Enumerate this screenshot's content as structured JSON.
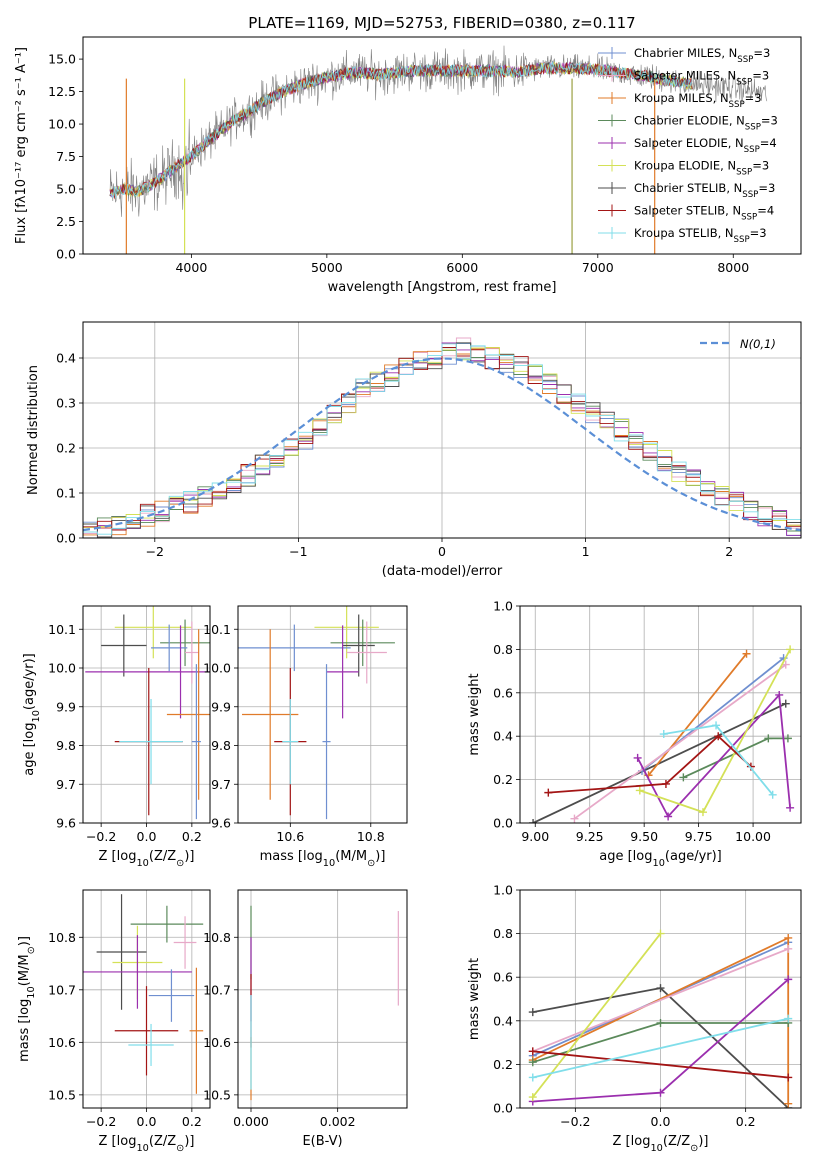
{
  "chart_data": [
    {
      "type": "line",
      "title": "PLATE=1169, MJD=52753, FIBERID=0380, z=0.117",
      "xlabel": "wavelength [Angstrom, rest frame]",
      "ylabel": "Flux [fλ10⁻¹⁷ erg cm⁻² s⁻¹ A⁻¹]",
      "xlim": [
        3200,
        8500
      ],
      "ylim": [
        0,
        16.7
      ],
      "xticks": [
        4000,
        5000,
        6000,
        7000,
        8000
      ],
      "yticks": [
        0.0,
        2.5,
        5.0,
        7.5,
        10.0,
        12.5,
        15.0
      ],
      "legend_position": "top-right",
      "continuum": {
        "x": [
          3400,
          3500,
          3600,
          3700,
          3800,
          3900,
          4000,
          4100,
          4200,
          4300,
          4400,
          4500,
          4600,
          4700,
          4800,
          5000,
          5200,
          5400,
          5600,
          5800,
          6000,
          6200,
          6400,
          6600,
          6800,
          7000,
          7200,
          7400,
          7600,
          7800,
          8000,
          8250
        ],
        "y": [
          4.6,
          5.0,
          4.8,
          5.3,
          6.0,
          6.8,
          7.5,
          8.5,
          9.3,
          10.2,
          10.8,
          11.5,
          12.1,
          12.6,
          13.0,
          13.6,
          14.0,
          13.8,
          14.1,
          14.1,
          14.1,
          14.1,
          14.0,
          14.3,
          14.3,
          14.2,
          13.9,
          13.6,
          13.2,
          13.0,
          12.8,
          12.3
        ]
      },
      "series": [
        {
          "name": "Chabrier MILES, N$_{SSP}$=3",
          "color": "#6f8fd0"
        },
        {
          "name": "Salpeter MILES, N$_{SSP}$=3",
          "color": "#e7a9c8"
        },
        {
          "name": "Kroupa MILES, N$_{SSP}$=3",
          "color": "#e07b2a"
        },
        {
          "name": "Chabrier ELODIE, N$_{SSP}$=3",
          "color": "#5b8a5b"
        },
        {
          "name": "Salpeter ELODIE, N$_{SSP}$=4",
          "color": "#9b2fae"
        },
        {
          "name": "Kroupa ELODIE, N$_{SSP}$=3",
          "color": "#d4e157"
        },
        {
          "name": "Chabrier STELIB, N$_{SSP}$=3",
          "color": "#4d4d4d"
        },
        {
          "name": "Salpeter STELIB, N$_{SSP}$=4",
          "color": "#a31515"
        },
        {
          "name": "Kroupa STELIB, N$_{SSP}$=3",
          "color": "#80deea"
        }
      ]
    },
    {
      "type": "line",
      "xlabel": "(data-model)/error",
      "ylabel": "Normed distribution",
      "xlim": [
        -2.5,
        2.5
      ],
      "ylim": [
        0,
        0.48
      ],
      "xticks": [
        -2,
        -1,
        0,
        1,
        2
      ],
      "yticks": [
        0.0,
        0.1,
        0.2,
        0.3,
        0.4
      ],
      "grid": true,
      "legend_position": "top-right",
      "gaussian_label": "$\\mathcal{N}(0,1)$",
      "histogram_bin_edges_from": -2.5,
      "histogram_bin_width": 0.1,
      "histogram_template": [
        0.02,
        0.025,
        0.03,
        0.04,
        0.05,
        0.06,
        0.07,
        0.08,
        0.09,
        0.1,
        0.12,
        0.14,
        0.16,
        0.18,
        0.2,
        0.22,
        0.25,
        0.28,
        0.3,
        0.33,
        0.35,
        0.36,
        0.38,
        0.39,
        0.4,
        0.41,
        0.42,
        0.41,
        0.4,
        0.39,
        0.38,
        0.36,
        0.34,
        0.32,
        0.3,
        0.28,
        0.26,
        0.24,
        0.22,
        0.19,
        0.17,
        0.15,
        0.13,
        0.11,
        0.09,
        0.08,
        0.06,
        0.05,
        0.04,
        0.03
      ]
    },
    {
      "type": "scatter",
      "xlabel": "Z [log$_{10}$(Z/Z$_\\odot$)]",
      "ylabel": "age  [log$_{10}$(age/yr)]",
      "xlim": [
        -0.28,
        0.28
      ],
      "ylim": [
        9.6,
        10.16
      ],
      "xticks": [
        -0.2,
        0.0,
        0.2
      ],
      "yticks": [
        9.6,
        9.7,
        9.8,
        9.9,
        10.0,
        10.1
      ],
      "points": [
        {
          "x": 0.03,
          "y": 10.105,
          "xerr": 0.17,
          "yerr": 0.08,
          "color": "#d4e157"
        },
        {
          "x": 0.17,
          "y": 10.065,
          "xerr": 0.11,
          "yerr": 0.06,
          "color": "#5b8a5b"
        },
        {
          "x": -0.1,
          "y": 10.058,
          "xerr": 0.1,
          "yerr": 0.08,
          "color": "#4d4d4d"
        },
        {
          "x": 0.1,
          "y": 10.052,
          "xerr": 0.08,
          "yerr": 0.06,
          "color": "#6f8fd0"
        },
        {
          "x": 0.2,
          "y": 10.04,
          "xerr": 0.03,
          "yerr": 0.08,
          "color": "#e7a9c8"
        },
        {
          "x": 0.15,
          "y": 9.99,
          "xerr": 0.42,
          "yerr": 0.12,
          "color": "#9b2fae"
        },
        {
          "x": 0.23,
          "y": 9.88,
          "xerr": 0.14,
          "yerr": 0.22,
          "color": "#e07b2a"
        },
        {
          "x": 0.01,
          "y": 9.81,
          "xerr": 0.15,
          "yerr": 0.19,
          "color": "#a31515"
        },
        {
          "x": 0.02,
          "y": 9.81,
          "xerr": 0.14,
          "yerr": 0.11,
          "color": "#80deea"
        },
        {
          "x": 0.22,
          "y": 9.81,
          "xerr": 0.02,
          "yerr": 0.2,
          "color": "#6f8fd0"
        }
      ]
    },
    {
      "type": "scatter",
      "xlabel": "mass [log$_{10}$(M/M$_\\odot$)]",
      "xlim": [
        10.47,
        10.89
      ],
      "ylim": [
        9.6,
        10.16
      ],
      "xticks": [
        10.6,
        10.8
      ],
      "yticks": [
        9.6,
        9.7,
        9.8,
        9.9,
        10.0,
        10.1
      ],
      "points": [
        {
          "x": 10.74,
          "y": 10.105,
          "xerr": 0.08,
          "yerr": 0.08,
          "color": "#d4e157"
        },
        {
          "x": 10.78,
          "y": 10.065,
          "xerr": 0.08,
          "yerr": 0.06,
          "color": "#5b8a5b"
        },
        {
          "x": 10.61,
          "y": 10.052,
          "xerr": 0.14,
          "yerr": 0.06,
          "color": "#6f8fd0"
        },
        {
          "x": 10.77,
          "y": 10.058,
          "xerr": 0.04,
          "yerr": 0.08,
          "color": "#4d4d4d"
        },
        {
          "x": 10.79,
          "y": 10.04,
          "xerr": 0.05,
          "yerr": 0.08,
          "color": "#e7a9c8"
        },
        {
          "x": 10.73,
          "y": 9.99,
          "xerr": 0.04,
          "yerr": 0.12,
          "color": "#9b2fae"
        },
        {
          "x": 10.55,
          "y": 9.88,
          "xerr": 0.07,
          "yerr": 0.22,
          "color": "#e07b2a"
        },
        {
          "x": 10.6,
          "y": 9.81,
          "xerr": 0.04,
          "yerr": 0.19,
          "color": "#a31515"
        },
        {
          "x": 10.6,
          "y": 9.81,
          "xerr": 0.02,
          "yerr": 0.11,
          "color": "#80deea"
        },
        {
          "x": 10.69,
          "y": 9.81,
          "xerr": 0.01,
          "yerr": 0.2,
          "color": "#6f8fd0"
        }
      ]
    },
    {
      "type": "line",
      "xlabel": "age  [log$_{10}$(age/yr)]",
      "ylabel": "mass weight",
      "xlim": [
        8.93,
        10.22
      ],
      "ylim": [
        0,
        1.0
      ],
      "xticks": [
        9.0,
        9.25,
        9.5,
        9.75,
        10.0
      ],
      "yticks": [
        0.0,
        0.2,
        0.4,
        0.6,
        0.8,
        1.0
      ],
      "grid": true,
      "series": [
        {
          "color": "#4d4d4d",
          "points": [
            [
              8.99,
              0.0
            ],
            [
              10.15,
              0.55
            ]
          ]
        },
        {
          "color": "#6f8fd0",
          "points": [
            [
              9.49,
              0.24
            ],
            [
              10.14,
              0.76
            ]
          ]
        },
        {
          "color": "#e07b2a",
          "points": [
            [
              9.52,
              0.22
            ],
            [
              9.97,
              0.78
            ]
          ]
        },
        {
          "color": "#e7a9c8",
          "points": [
            [
              9.18,
              0.02
            ],
            [
              10.15,
              0.73
            ]
          ]
        },
        {
          "color": "#5b8a5b",
          "points": [
            [
              9.68,
              0.21
            ],
            [
              10.07,
              0.39
            ],
            [
              10.16,
              0.39
            ]
          ]
        },
        {
          "color": "#9b2fae",
          "points": [
            [
              9.47,
              0.3
            ],
            [
              9.61,
              0.03
            ],
            [
              10.12,
              0.59
            ],
            [
              10.17,
              0.07
            ]
          ]
        },
        {
          "color": "#d4e157",
          "points": [
            [
              9.48,
              0.15
            ],
            [
              9.77,
              0.05
            ],
            [
              10.17,
              0.8
            ]
          ]
        },
        {
          "color": "#a31515",
          "points": [
            [
              9.06,
              0.14
            ],
            [
              9.6,
              0.18
            ],
            [
              9.84,
              0.4
            ],
            [
              9.99,
              0.26
            ]
          ]
        },
        {
          "color": "#80deea",
          "points": [
            [
              9.59,
              0.41
            ],
            [
              9.83,
              0.45
            ],
            [
              10.09,
              0.13
            ]
          ]
        }
      ]
    },
    {
      "type": "scatter",
      "xlabel": "Z [log$_{10}$(Z/Z$_\\odot$)]",
      "ylabel": "mass [log$_{10}$(M/M$_\\odot$)]",
      "xlim": [
        -0.28,
        0.28
      ],
      "ylim": [
        10.475,
        10.89
      ],
      "xticks": [
        -0.2,
        0.0,
        0.2
      ],
      "yticks": [
        10.5,
        10.6,
        10.7,
        10.8
      ],
      "points": [
        {
          "x": 0.09,
          "y": 10.825,
          "xerr": 0.16,
          "yerr": 0.035,
          "color": "#5b8a5b"
        },
        {
          "x": 0.17,
          "y": 10.79,
          "xerr": 0.05,
          "yerr": 0.05,
          "color": "#e7a9c8"
        },
        {
          "x": -0.11,
          "y": 10.772,
          "xerr": 0.11,
          "yerr": 0.11,
          "color": "#4d4d4d"
        },
        {
          "x": -0.04,
          "y": 10.752,
          "xerr": 0.11,
          "yerr": 0.07,
          "color": "#d4e157"
        },
        {
          "x": -0.04,
          "y": 10.734,
          "xerr": 0.24,
          "yerr": 0.07,
          "color": "#9b2fae"
        },
        {
          "x": 0.11,
          "y": 10.689,
          "xerr": 0.1,
          "yerr": 0.05,
          "color": "#6f8fd0"
        },
        {
          "x": 0.0,
          "y": 10.622,
          "xerr": 0.14,
          "yerr": 0.085,
          "color": "#a31515"
        },
        {
          "x": 0.22,
          "y": 10.622,
          "xerr": 0.03,
          "yerr": 0.12,
          "color": "#e07b2a"
        },
        {
          "x": 0.02,
          "y": 10.595,
          "xerr": 0.1,
          "yerr": 0.04,
          "color": "#80deea"
        }
      ]
    },
    {
      "type": "scatter",
      "xlabel": "E(B-V)",
      "xlim": [
        -0.0003,
        0.0036
      ],
      "ylim": [
        10.475,
        10.89
      ],
      "xticks": [
        0.0,
        0.002
      ],
      "yticks": [
        10.5,
        10.6,
        10.7,
        10.8
      ],
      "points": [
        {
          "x": 0.0,
          "y": 10.79,
          "xerr": 0.0,
          "yerr": 0.07,
          "color": "#5b8a5b"
        },
        {
          "x": 0.0,
          "y": 10.72,
          "xerr": 0.0,
          "yerr": 0.08,
          "color": "#9b2fae"
        },
        {
          "x": 0.0,
          "y": 10.66,
          "xerr": 0.0,
          "yerr": 0.07,
          "color": "#a31515"
        },
        {
          "x": 0.0,
          "y": 10.55,
          "xerr": 0.0,
          "yerr": 0.06,
          "color": "#e07b2a"
        },
        {
          "x": 0.0,
          "y": 10.6,
          "xerr": 0.0,
          "yerr": 0.09,
          "color": "#80deea"
        },
        {
          "x": 0.0034,
          "y": 10.76,
          "xerr": 0.0,
          "yerr": 0.09,
          "color": "#e7a9c8"
        }
      ]
    },
    {
      "type": "line",
      "xlabel": "Z [log$_{10}$(Z/Z$_\\odot$)]",
      "ylabel": "mass weight",
      "xlim": [
        -0.33,
        0.33
      ],
      "ylim": [
        0,
        1.0
      ],
      "xticks": [
        -0.2,
        0.0,
        0.2
      ],
      "yticks": [
        0.0,
        0.2,
        0.4,
        0.6,
        0.8,
        1.0
      ],
      "grid": true,
      "series": [
        {
          "color": "#4d4d4d",
          "points": [
            [
              -0.3,
              0.44
            ],
            [
              0.0,
              0.55
            ],
            [
              0.3,
              0.0
            ]
          ]
        },
        {
          "color": "#6f8fd0",
          "points": [
            [
              -0.3,
              0.24
            ],
            [
              0.3,
              0.76
            ]
          ]
        },
        {
          "color": "#e07b2a",
          "points": [
            [
              -0.3,
              0.22
            ],
            [
              0.3,
              0.78
            ],
            [
              0.3,
              0.02
            ]
          ]
        },
        {
          "color": "#e7a9c8",
          "points": [
            [
              -0.3,
              0.26
            ],
            [
              0.3,
              0.73
            ]
          ]
        },
        {
          "color": "#5b8a5b",
          "points": [
            [
              -0.3,
              0.21
            ],
            [
              0.0,
              0.39
            ],
            [
              0.3,
              0.39
            ]
          ]
        },
        {
          "color": "#9b2fae",
          "points": [
            [
              -0.3,
              0.03
            ],
            [
              0.0,
              0.07
            ],
            [
              0.3,
              0.59
            ]
          ]
        },
        {
          "color": "#d4e157",
          "points": [
            [
              -0.3,
              0.05
            ],
            [
              0.0,
              0.8
            ]
          ]
        },
        {
          "color": "#a31515",
          "points": [
            [
              -0.3,
              0.26
            ],
            [
              0.3,
              0.14
            ]
          ]
        },
        {
          "color": "#80deea",
          "points": [
            [
              -0.3,
              0.14
            ],
            [
              0.3,
              0.41
            ]
          ]
        }
      ]
    }
  ]
}
